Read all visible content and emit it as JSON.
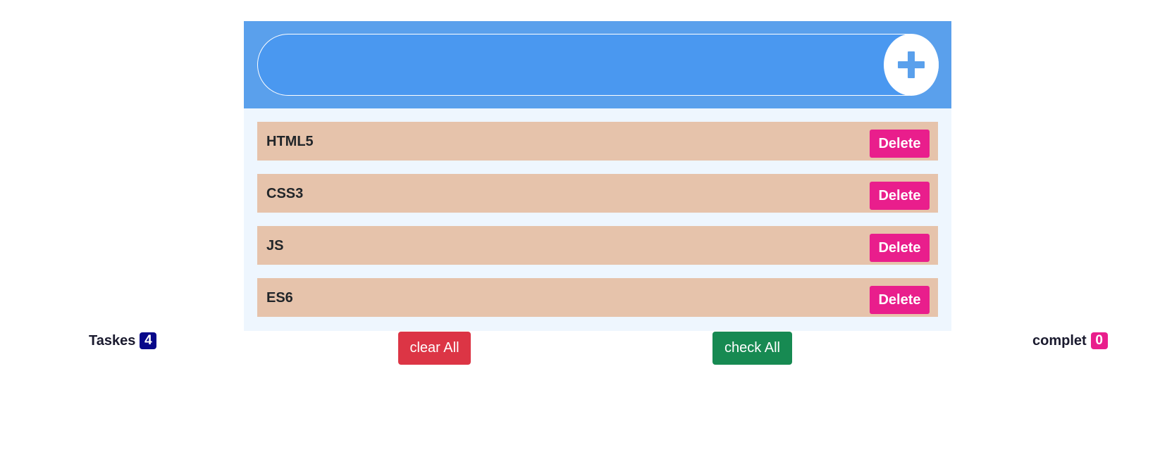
{
  "header": {
    "input_value": "",
    "input_placeholder": "",
    "add_icon": "plus-icon",
    "accent_color": "#5aa0ec"
  },
  "tasks": [
    {
      "label": "HTML5",
      "delete_label": "Delete"
    },
    {
      "label": "CSS3",
      "delete_label": "Delete"
    },
    {
      "label": "JS",
      "delete_label": "Delete"
    },
    {
      "label": "ES6",
      "delete_label": "Delete"
    }
  ],
  "footer": {
    "tasks_label": "Taskes",
    "tasks_count": "4",
    "clear_all_label": "clear All",
    "check_all_label": "check All",
    "complete_label": "complet",
    "complete_count": "0"
  },
  "colors": {
    "task_bg": "#e6c3ab",
    "delete": "#e91e8c",
    "clear": "#dc3545",
    "check": "#178a52",
    "tasks_badge": "#08088a",
    "complete_badge": "#e91e8c"
  }
}
